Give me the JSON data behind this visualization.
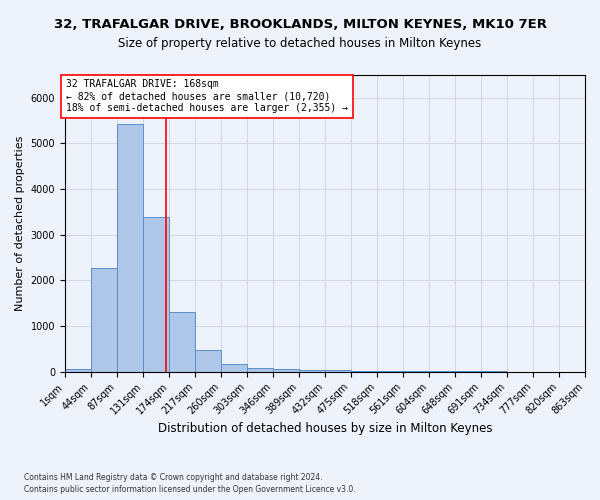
{
  "title": "32, TRAFALGAR DRIVE, BROOKLANDS, MILTON KEYNES, MK10 7ER",
  "subtitle": "Size of property relative to detached houses in Milton Keynes",
  "xlabel": "Distribution of detached houses by size in Milton Keynes",
  "ylabel": "Number of detached properties",
  "footnote1": "Contains HM Land Registry data © Crown copyright and database right 2024.",
  "footnote2": "Contains public sector information licensed under the Open Government Licence v3.0.",
  "annotation_line1": "32 TRAFALGAR DRIVE: 168sqm",
  "annotation_line2": "← 82% of detached houses are smaller (10,720)",
  "annotation_line3": "18% of semi-detached houses are larger (2,355) →",
  "property_size": 168,
  "bin_width": 43,
  "bin_edges": [
    1,
    44,
    87,
    131,
    174,
    217,
    260,
    303,
    346,
    389,
    432,
    475,
    518,
    561,
    604,
    648,
    691,
    734,
    777,
    820,
    863
  ],
  "bar_heights": [
    70,
    2280,
    5430,
    3400,
    1310,
    480,
    160,
    85,
    60,
    45,
    35,
    25,
    20,
    15,
    10,
    8,
    5,
    4,
    3,
    2
  ],
  "bar_color": "#aec6e8",
  "bar_edge_color": "#5b8fc9",
  "grid_color": "#d0d8e8",
  "bg_color": "#eef2fa",
  "vline_color": "red",
  "ylim": [
    0,
    6500
  ],
  "title_fontsize": 9.5,
  "subtitle_fontsize": 8.5,
  "xlabel_fontsize": 8.5,
  "ylabel_fontsize": 8,
  "tick_fontsize": 7,
  "annotation_fontsize": 7,
  "footnote_fontsize": 5.5
}
